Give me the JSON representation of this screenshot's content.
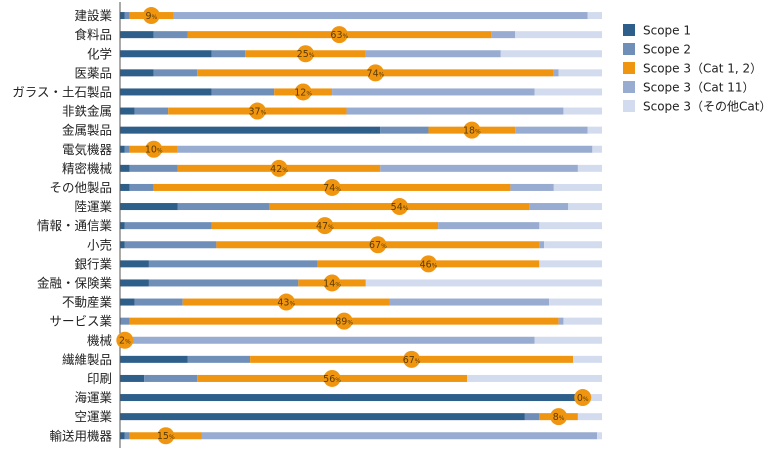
{
  "chart_data": {
    "type": "bar",
    "stacked": true,
    "orientation": "horizontal",
    "normalized": true,
    "categories": [
      "建設業",
      "食料品",
      "化学",
      "医薬品",
      "ガラス・土石製品",
      "非鉄金属",
      "金属製品",
      "電気機器",
      "精密機械",
      "その他製品",
      "陸運業",
      "情報・通信業",
      "小売",
      "銀行業",
      "金融・保険業",
      "不動産業",
      "サービス業",
      "機械",
      "繊維製品",
      "印刷",
      "海運業",
      "空運業",
      "輸送用機器"
    ],
    "series": [
      {
        "name": "Scope 1",
        "color": "#2e5f8a",
        "values": [
          1,
          7,
          19,
          7,
          19,
          3,
          54,
          1,
          2,
          2,
          12,
          1,
          1,
          6,
          6,
          3,
          0,
          0,
          14,
          5,
          96,
          84,
          1
        ]
      },
      {
        "name": "Scope 2",
        "color": "#6f8fb8",
        "values": [
          1,
          7,
          7,
          9,
          13,
          7,
          10,
          1,
          10,
          5,
          19,
          18,
          19,
          35,
          31,
          10,
          2,
          0,
          13,
          11,
          0,
          3,
          1
        ]
      },
      {
        "name": "Scope 3（Cat 1, 2）",
        "color": "#f0950f",
        "values": [
          9,
          63,
          25,
          74,
          12,
          37,
          18,
          10,
          42,
          74,
          54,
          47,
          67,
          46,
          14,
          43,
          89,
          2,
          67,
          56,
          0,
          8,
          15
        ]
      },
      {
        "name": "Scope 3（Cat 11）",
        "color": "#98abd0",
        "values": [
          86,
          5,
          28,
          1,
          42,
          45,
          15,
          86,
          41,
          9,
          8,
          21,
          1,
          0,
          0,
          33,
          1,
          84,
          0,
          0,
          0,
          0,
          82
        ]
      },
      {
        "name": "Scope 3（その他Cat）",
        "color": "#d3dcee",
        "values": [
          3,
          18,
          21,
          9,
          14,
          8,
          3,
          2,
          5,
          10,
          7,
          13,
          12,
          13,
          49,
          11,
          8,
          14,
          6,
          28,
          4,
          5,
          1
        ]
      }
    ],
    "data_labels": {
      "series": "Scope 3（Cat 1, 2）",
      "suffix": "%",
      "values": [
        9,
        63,
        25,
        74,
        12,
        37,
        18,
        10,
        42,
        74,
        54,
        47,
        67,
        46,
        14,
        43,
        89,
        2,
        67,
        56,
        0,
        8,
        15
      ]
    },
    "xlim": [
      0,
      100
    ],
    "legend_position": "right",
    "grid": false,
    "title": "",
    "xlabel": "",
    "ylabel": ""
  }
}
